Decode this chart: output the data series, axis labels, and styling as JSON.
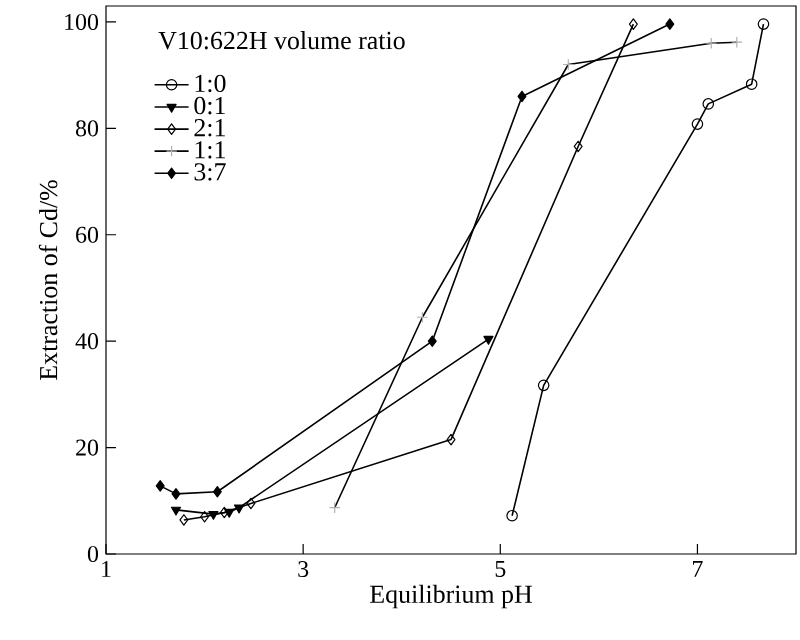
{
  "chart_data": {
    "type": "line",
    "xlabel": "Equilibrium pH",
    "ylabel": "Extraction of Cd/%",
    "legend_title": "V10:622H volume ratio",
    "xlim": [
      1,
      8
    ],
    "ylim": [
      0,
      103
    ],
    "xticks": [
      1,
      3,
      5,
      7
    ],
    "yticks": [
      0,
      20,
      40,
      60,
      80,
      100
    ],
    "grid": false,
    "legend": "top left",
    "line_style": "solid",
    "series": [
      {
        "name": "1:0",
        "color": "#000000",
        "marker": "circle",
        "x": [
          5.12,
          5.44,
          7.0,
          7.11,
          7.55,
          7.67
        ],
        "values": [
          7.2,
          31.7,
          80.8,
          84.6,
          88.3,
          99.6
        ]
      },
      {
        "name": "0:1",
        "color": "#000000",
        "marker": "triangle",
        "x": [
          1.71,
          2.09,
          2.25,
          2.35,
          4.88
        ],
        "values": [
          8.3,
          7.5,
          7.9,
          8.7,
          40.4
        ]
      },
      {
        "name": "2:1",
        "color": "#000000",
        "marker": "diamond",
        "x": [
          1.79,
          2.0,
          2.2,
          2.47,
          4.5,
          5.79,
          6.35
        ],
        "values": [
          6.4,
          7.0,
          7.8,
          9.5,
          21.5,
          76.6,
          99.6
        ]
      },
      {
        "name": "1:1",
        "color": "#b0b0b0",
        "marker": "cross",
        "x": [
          3.32,
          4.21,
          5.69,
          7.14,
          7.4
        ],
        "values": [
          8.7,
          44.5,
          92.0,
          96.0,
          96.2
        ]
      },
      {
        "name": "3:7",
        "color": "#000000",
        "marker": "diamond",
        "x": [
          1.55,
          1.71,
          2.13,
          4.31,
          5.22,
          6.72
        ],
        "values": [
          12.8,
          11.3,
          11.7,
          40.0,
          86.0,
          99.6
        ]
      }
    ]
  }
}
